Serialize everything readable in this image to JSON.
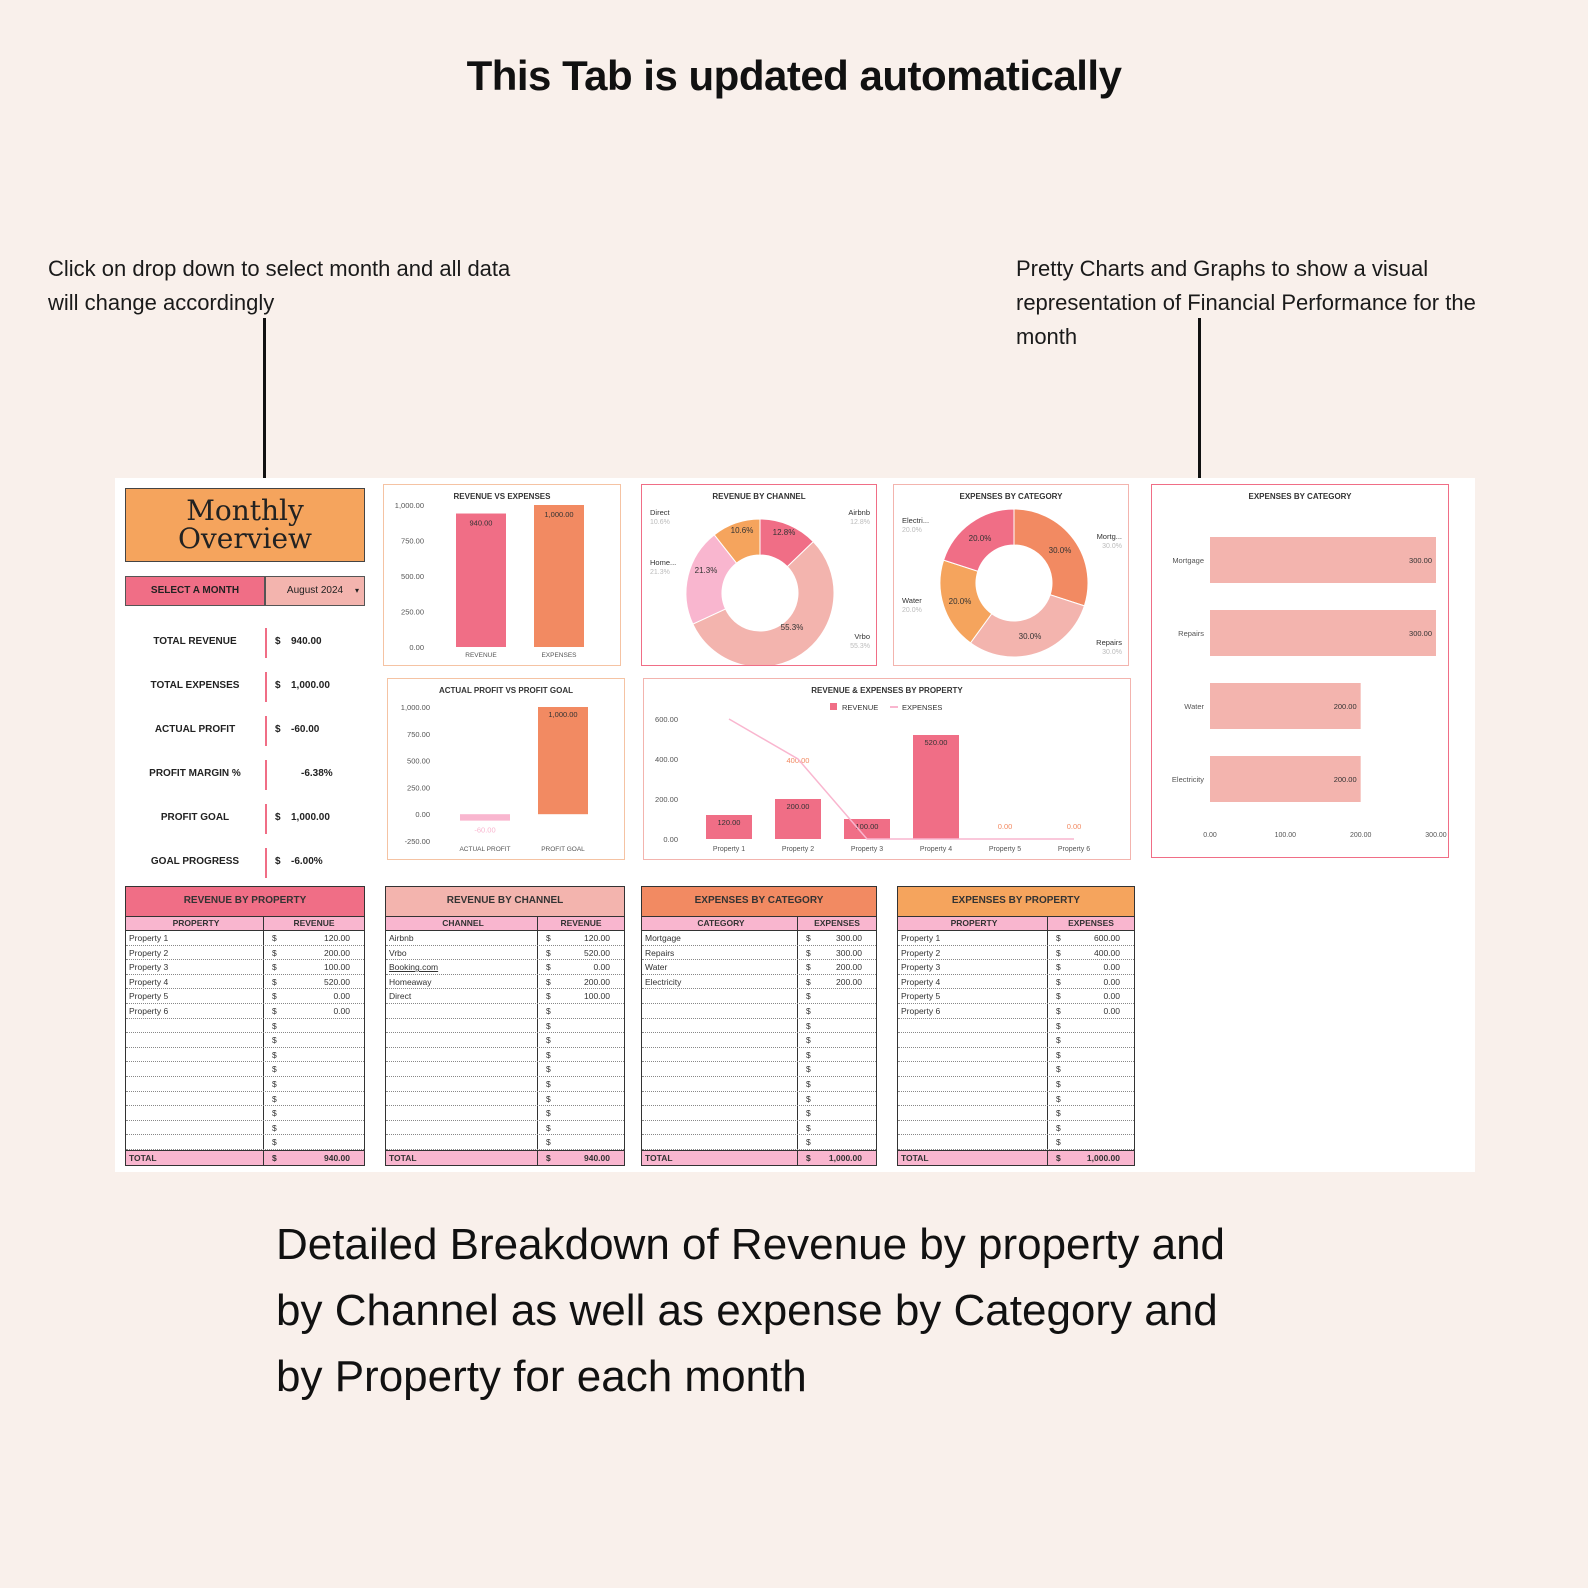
{
  "headline": "This Tab is updated automatically",
  "note_left": "Click on drop down to select month and all data will change accordingly",
  "note_right": "Pretty Charts and Graphs to show a visual representation of Financial Performance for the month",
  "bottom_text": "Detailed Breakdown of Revenue by property and by Channel as well as expense by Category and by Property for each month",
  "overview": {
    "title": "Monthly Overview",
    "select_label": "SELECT A MONTH",
    "selected_month": "August 2024",
    "metrics": [
      {
        "label": "TOTAL REVENUE",
        "currency": "$",
        "value": "940.00"
      },
      {
        "label": "TOTAL EXPENSES",
        "currency": "$",
        "value": "1,000.00"
      },
      {
        "label": "ACTUAL PROFIT",
        "currency": "$",
        "value": "-60.00"
      },
      {
        "label": "PROFIT MARGIN %",
        "currency": "",
        "value": "-6.38%"
      },
      {
        "label": "PROFIT GOAL",
        "currency": "$",
        "value": "1,000.00"
      },
      {
        "label": "GOAL PROGRESS",
        "currency": "$",
        "value": "-6.00%"
      }
    ]
  },
  "colors": {
    "pink": "#f06e86",
    "coral": "#f28a62",
    "light_pink": "#f3b4ae",
    "orange": "#f5a45d",
    "bg": "#f9f0eb",
    "row_pink": "#f9b6cf"
  },
  "chart_data": [
    {
      "id": "rev_vs_exp",
      "type": "bar",
      "title": "REVENUE VS EXPENSES",
      "categories": [
        "REVENUE",
        "EXPENSES"
      ],
      "values": [
        940,
        1000
      ],
      "value_labels": [
        "940.00",
        "1,000.00"
      ],
      "ylim": [
        0,
        1000
      ],
      "yticks": [
        "1,000.00",
        "750.00",
        "500.00",
        "250.00",
        "0.00"
      ],
      "colors": [
        "#f06e86",
        "#f28a62"
      ]
    },
    {
      "id": "rev_by_channel",
      "type": "pie",
      "title": "REVENUE BY CHANNEL",
      "labels": [
        "Airbnb",
        "Vrbo",
        "Home...",
        "Direct"
      ],
      "values": [
        12.8,
        55.3,
        21.3,
        10.6
      ],
      "value_labels": [
        "12.8%",
        "55.3%",
        "21.3%",
        "10.6%"
      ],
      "colors": [
        "#f06e86",
        "#f3b4ae",
        "#f9b6cf",
        "#f5a45d"
      ]
    },
    {
      "id": "exp_by_category_pie",
      "type": "pie",
      "title": "EXPENSES BY CATEGORY",
      "labels": [
        "Mortg...",
        "Repairs",
        "Water",
        "Electri..."
      ],
      "values": [
        30.0,
        30.0,
        20.0,
        20.0
      ],
      "value_labels": [
        "30.0%",
        "30.0%",
        "20.0%",
        "20.0%"
      ],
      "colors": [
        "#f28a62",
        "#f3b4ae",
        "#f5a45d",
        "#f06e86"
      ]
    },
    {
      "id": "exp_by_category_bar",
      "type": "bar",
      "orientation": "horizontal",
      "title": "EXPENSES BY CATEGORY",
      "categories": [
        "Mortgage",
        "Repairs",
        "Water",
        "Electricity"
      ],
      "values": [
        300,
        300,
        200,
        200
      ],
      "value_labels": [
        "300.00",
        "300.00",
        "200.00",
        "200.00"
      ],
      "xlim": [
        0,
        300
      ],
      "xticks": [
        "0.00",
        "100.00",
        "200.00",
        "300.00"
      ],
      "color": "#f3b4ae"
    },
    {
      "id": "profit_vs_goal",
      "type": "bar",
      "title": "ACTUAL PROFIT VS PROFIT GOAL",
      "categories": [
        "ACTUAL PROFIT",
        "PROFIT GOAL"
      ],
      "values": [
        -60,
        1000
      ],
      "value_labels": [
        "-60.00",
        "1,000.00"
      ],
      "ylim": [
        -250,
        1000
      ],
      "yticks": [
        "1,000.00",
        "750.00",
        "500.00",
        "250.00",
        "0.00",
        "-250.00"
      ],
      "colors": [
        "#f9b6cf",
        "#f28a62"
      ]
    },
    {
      "id": "rev_exp_by_property",
      "type": "bar",
      "title": "REVENUE & EXPENSES BY PROPERTY",
      "categories": [
        "Property 1",
        "Property 2",
        "Property 3",
        "Property 4",
        "Property 5",
        "Property 6"
      ],
      "series": [
        {
          "name": "REVENUE",
          "type": "bar",
          "values": [
            120,
            200,
            100,
            520,
            0,
            0
          ],
          "value_labels": [
            "120.00",
            "200.00",
            "100.00",
            "520.00",
            "0.00",
            "0.00"
          ],
          "color": "#f06e86"
        },
        {
          "name": "EXPENSES",
          "type": "line",
          "values": [
            600,
            400,
            0,
            0,
            0,
            0
          ],
          "value_labels": [
            "",
            "400.00",
            "",
            "",
            "",
            ""
          ],
          "color": "#f9b6cf"
        }
      ],
      "ylim": [
        0,
        600
      ],
      "yticks": [
        "600.00",
        "400.00",
        "200.00",
        "0.00"
      ]
    }
  ],
  "tables": [
    {
      "title": "REVENUE BY PROPERTY",
      "col1": "PROPERTY",
      "col2": "REVENUE",
      "color": "#f06e86",
      "rows": [
        [
          "Property 1",
          "$",
          "120.00"
        ],
        [
          "Property 2",
          "$",
          "200.00"
        ],
        [
          "Property 3",
          "$",
          "100.00"
        ],
        [
          "Property 4",
          "$",
          "520.00"
        ],
        [
          "Property 5",
          "$",
          "0.00"
        ],
        [
          "Property 6",
          "$",
          "0.00"
        ],
        [
          "",
          "$",
          ""
        ],
        [
          "",
          "$",
          ""
        ],
        [
          "",
          "$",
          ""
        ],
        [
          "",
          "$",
          ""
        ],
        [
          "",
          "$",
          ""
        ],
        [
          "",
          "$",
          ""
        ],
        [
          "",
          "$",
          ""
        ],
        [
          "",
          "$",
          ""
        ],
        [
          "",
          "$",
          ""
        ]
      ],
      "total": [
        "TOTAL",
        "$",
        "940.00"
      ]
    },
    {
      "title": "REVENUE BY CHANNEL",
      "col1": "CHANNEL",
      "col2": "REVENUE",
      "color": "#f3b4ae",
      "rows": [
        [
          "Airbnb",
          "$",
          "120.00"
        ],
        [
          "Vrbo",
          "$",
          "520.00"
        ],
        [
          "Booking.com",
          "$",
          "0.00"
        ],
        [
          "Homeaway",
          "$",
          "200.00"
        ],
        [
          "Direct",
          "$",
          "100.00"
        ],
        [
          "",
          "$",
          ""
        ],
        [
          "",
          "$",
          ""
        ],
        [
          "",
          "$",
          ""
        ],
        [
          "",
          "$",
          ""
        ],
        [
          "",
          "$",
          ""
        ],
        [
          "",
          "$",
          ""
        ],
        [
          "",
          "$",
          ""
        ],
        [
          "",
          "$",
          ""
        ],
        [
          "",
          "$",
          ""
        ],
        [
          "",
          "$",
          ""
        ]
      ],
      "total": [
        "TOTAL",
        "$",
        "940.00"
      ]
    },
    {
      "title": "EXPENSES BY CATEGORY",
      "col1": "CATEGORY",
      "col2": "EXPENSES",
      "color": "#f28a62",
      "rows": [
        [
          "Mortgage",
          "$",
          "300.00"
        ],
        [
          "Repairs",
          "$",
          "300.00"
        ],
        [
          "Water",
          "$",
          "200.00"
        ],
        [
          "Electricity",
          "$",
          "200.00"
        ],
        [
          "",
          "$",
          ""
        ],
        [
          "",
          "$",
          ""
        ],
        [
          "",
          "$",
          ""
        ],
        [
          "",
          "$",
          ""
        ],
        [
          "",
          "$",
          ""
        ],
        [
          "",
          "$",
          ""
        ],
        [
          "",
          "$",
          ""
        ],
        [
          "",
          "$",
          ""
        ],
        [
          "",
          "$",
          ""
        ],
        [
          "",
          "$",
          ""
        ],
        [
          "",
          "$",
          ""
        ]
      ],
      "total": [
        "TOTAL",
        "$",
        "1,000.00"
      ]
    },
    {
      "title": "EXPENSES BY PROPERTY",
      "col1": "PROPERTY",
      "col2": "EXPENSES",
      "color": "#f5a45d",
      "rows": [
        [
          "Property 1",
          "$",
          "600.00"
        ],
        [
          "Property 2",
          "$",
          "400.00"
        ],
        [
          "Property 3",
          "$",
          "0.00"
        ],
        [
          "Property 4",
          "$",
          "0.00"
        ],
        [
          "Property 5",
          "$",
          "0.00"
        ],
        [
          "Property 6",
          "$",
          "0.00"
        ],
        [
          "",
          "$",
          ""
        ],
        [
          "",
          "$",
          ""
        ],
        [
          "",
          "$",
          ""
        ],
        [
          "",
          "$",
          ""
        ],
        [
          "",
          "$",
          ""
        ],
        [
          "",
          "$",
          ""
        ],
        [
          "",
          "$",
          ""
        ],
        [
          "",
          "$",
          ""
        ],
        [
          "",
          "$",
          ""
        ]
      ],
      "total": [
        "TOTAL",
        "$",
        "1,000.00"
      ]
    }
  ]
}
